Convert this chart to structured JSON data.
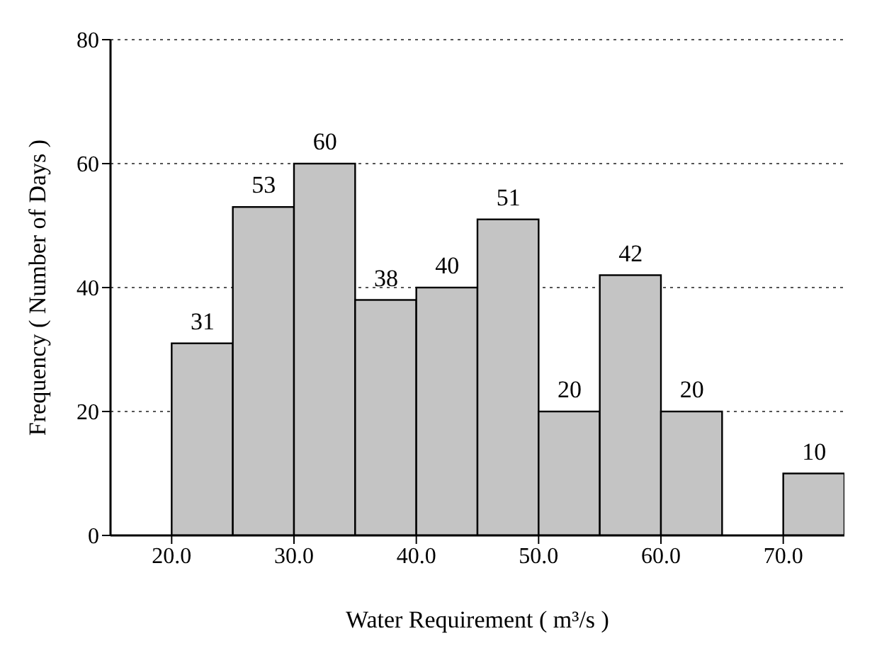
{
  "chart_data": {
    "type": "histogram",
    "xlabel": "Water Requirement ( m³/s )",
    "ylabel": "Frequency ( Number of Days )",
    "bins": [
      20,
      25,
      30,
      35,
      40,
      45,
      50,
      55,
      60,
      65,
      70,
      75
    ],
    "values": [
      31,
      53,
      60,
      38,
      40,
      51,
      20,
      42,
      20,
      0,
      10
    ],
    "value_labels": [
      "31",
      "53",
      "60",
      "38",
      "40",
      "51",
      "20",
      "42",
      "20",
      null,
      "10"
    ],
    "color": "#c4c4c4",
    "xlim": [
      15,
      75
    ],
    "xticks": [
      {
        "value": 20,
        "label": "20.0"
      },
      {
        "value": 30,
        "label": "30.0"
      },
      {
        "value": 40,
        "label": "40.0"
      },
      {
        "value": 50,
        "label": "50.0"
      },
      {
        "value": 60,
        "label": "60.0"
      },
      {
        "value": 70,
        "label": "70.0"
      }
    ],
    "ylim": [
      0,
      80
    ],
    "yticks": [
      0,
      20,
      40,
      60,
      80
    ],
    "grid": "y",
    "line_style": "dotted"
  }
}
